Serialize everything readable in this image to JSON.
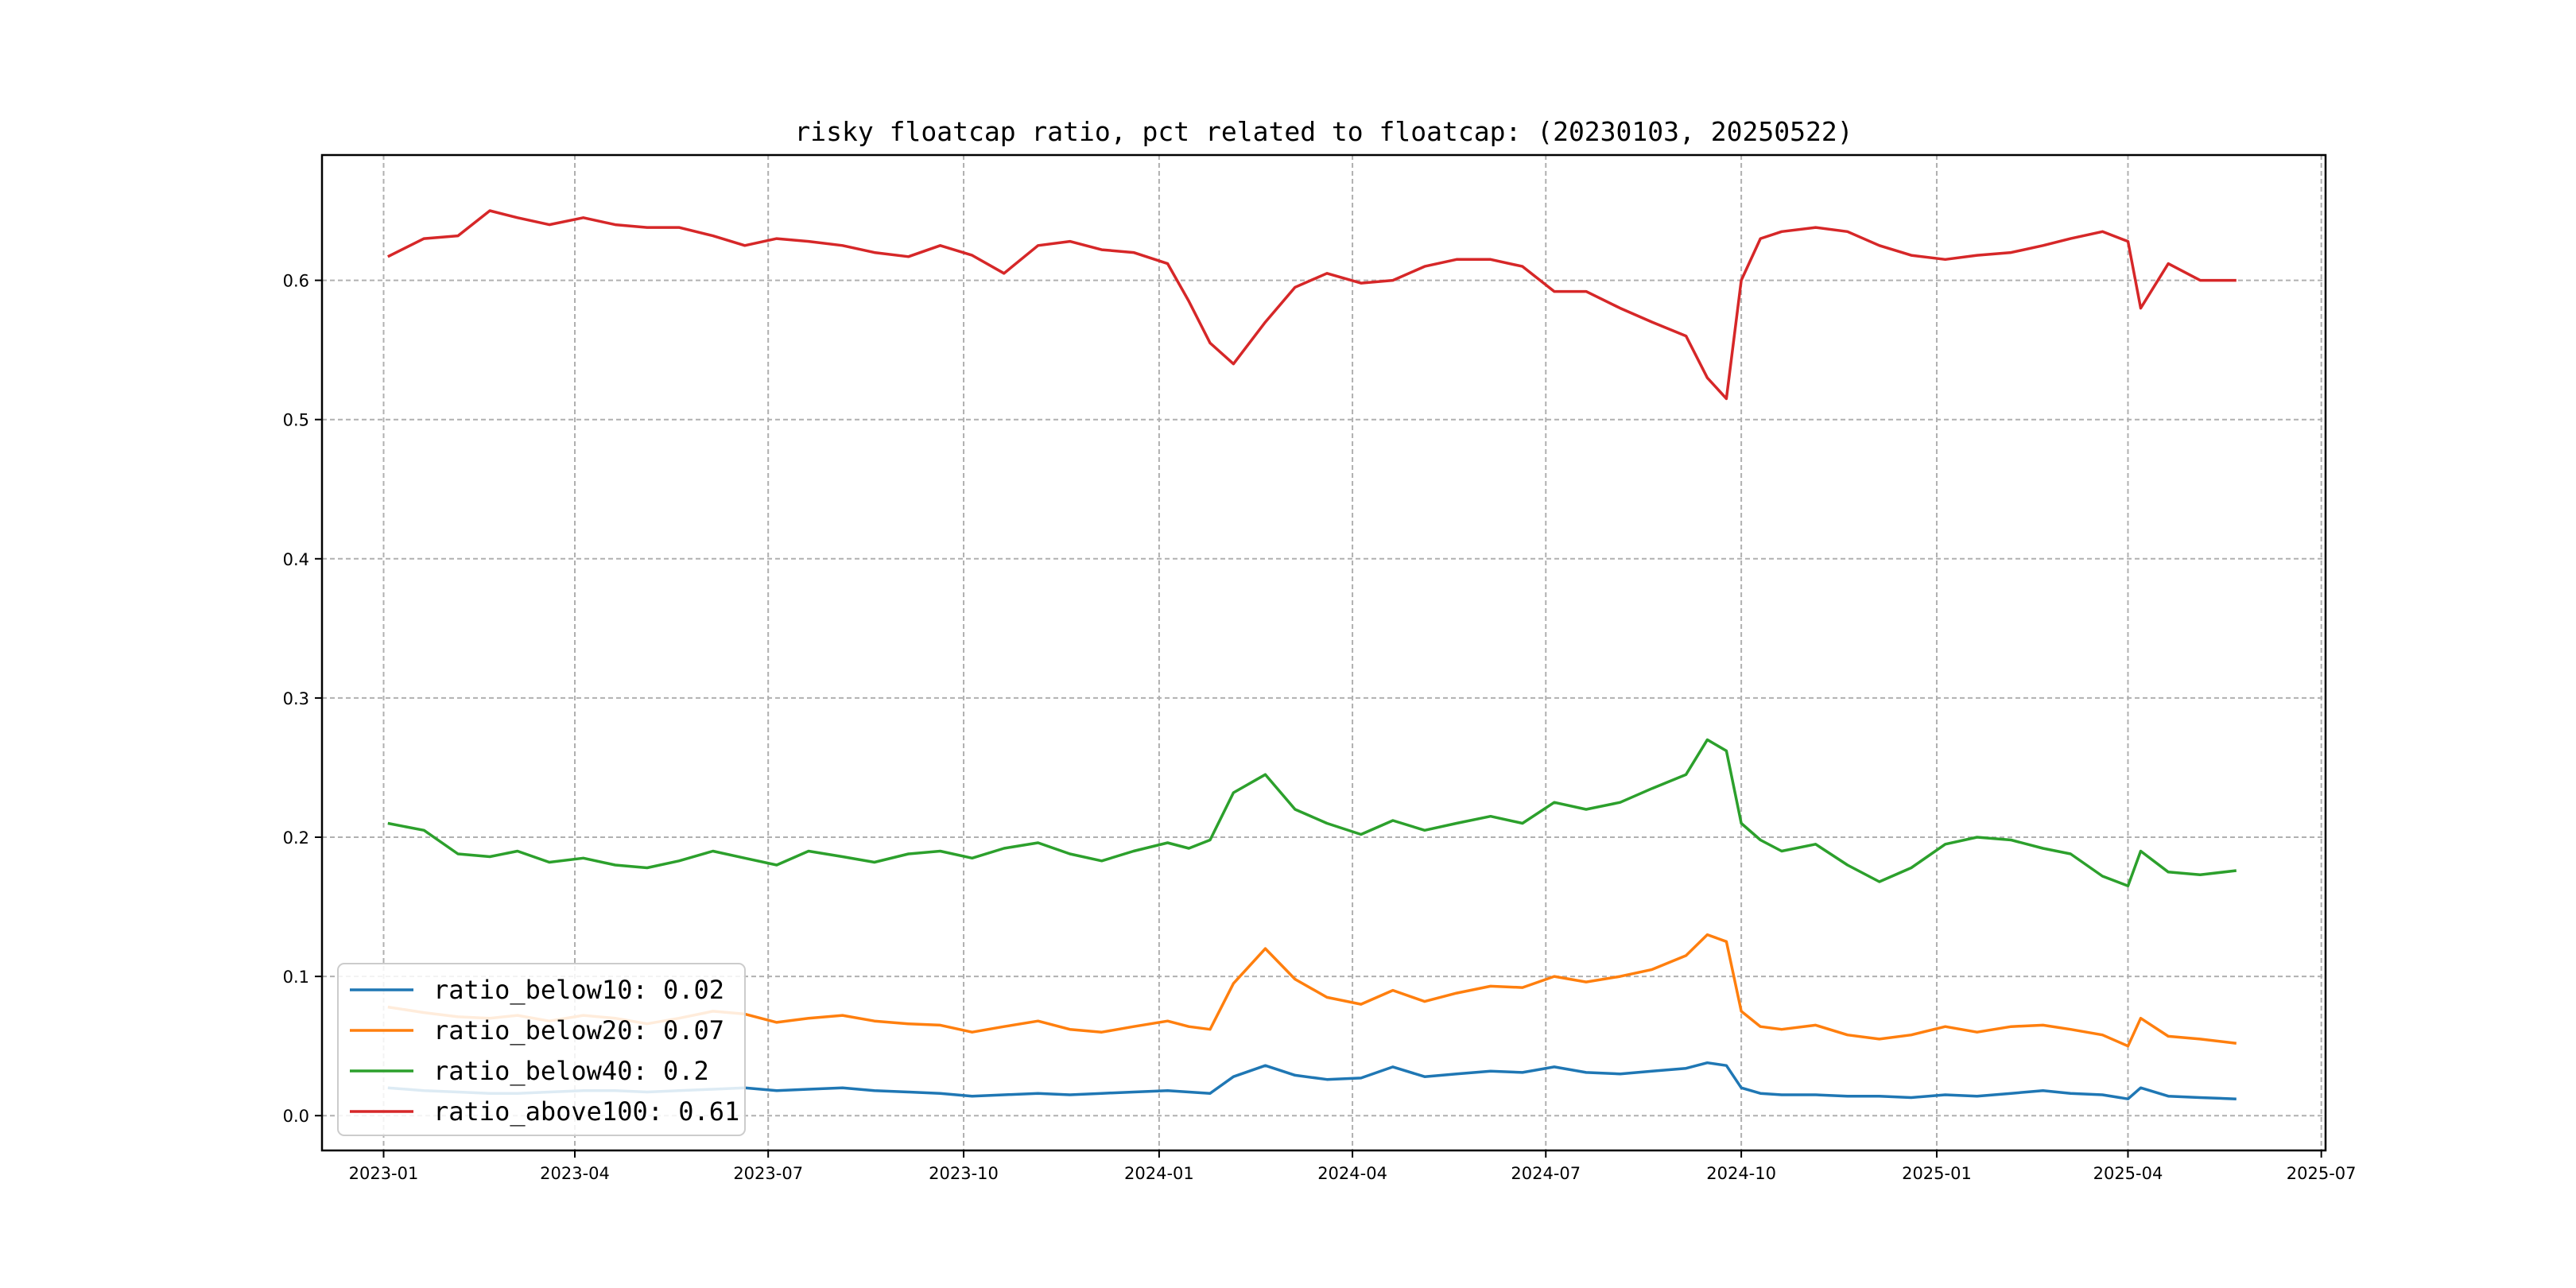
{
  "chart_data": {
    "type": "line",
    "title": "risky floatcap ratio, pct related to floatcap: (20230103, 20250522)",
    "xlabel": "",
    "ylabel": "",
    "xlim": [
      "2022-12-03",
      "2025-07-03"
    ],
    "ylim": [
      -0.025,
      0.69
    ],
    "grid": true,
    "legend_position": "lower-left",
    "x_ticks": [
      "2023-01",
      "2023-04",
      "2023-07",
      "2023-10",
      "2024-01",
      "2024-04",
      "2024-07",
      "2024-10",
      "2025-01",
      "2025-04",
      "2025-07"
    ],
    "y_ticks": [
      "0.0",
      "0.1",
      "0.2",
      "0.3",
      "0.4",
      "0.5",
      "0.6"
    ],
    "x": [
      "2023-01-03",
      "2023-01-20",
      "2023-02-05",
      "2023-02-20",
      "2023-03-05",
      "2023-03-20",
      "2023-04-05",
      "2023-04-20",
      "2023-05-05",
      "2023-05-20",
      "2023-06-05",
      "2023-06-20",
      "2023-07-05",
      "2023-07-20",
      "2023-08-05",
      "2023-08-20",
      "2023-09-05",
      "2023-09-20",
      "2023-10-05",
      "2023-10-20",
      "2023-11-05",
      "2023-11-20",
      "2023-12-05",
      "2023-12-20",
      "2024-01-05",
      "2024-01-15",
      "2024-01-25",
      "2024-02-05",
      "2024-02-20",
      "2024-03-05",
      "2024-03-20",
      "2024-04-05",
      "2024-04-20",
      "2024-05-05",
      "2024-05-20",
      "2024-06-05",
      "2024-06-20",
      "2024-07-05",
      "2024-07-20",
      "2024-08-05",
      "2024-08-20",
      "2024-09-05",
      "2024-09-15",
      "2024-09-24",
      "2024-10-01",
      "2024-10-10",
      "2024-10-20",
      "2024-11-05",
      "2024-11-20",
      "2024-12-05",
      "2024-12-20",
      "2025-01-05",
      "2025-01-20",
      "2025-02-05",
      "2025-02-20",
      "2025-03-05",
      "2025-03-20",
      "2025-04-01",
      "2025-04-07",
      "2025-04-20",
      "2025-05-05",
      "2025-05-22"
    ],
    "series": [
      {
        "name": "ratio_below10: 0.02",
        "color": "#1f77b4",
        "values": [
          0.02,
          0.018,
          0.017,
          0.016,
          0.016,
          0.017,
          0.018,
          0.018,
          0.017,
          0.018,
          0.019,
          0.02,
          0.018,
          0.019,
          0.02,
          0.018,
          0.017,
          0.016,
          0.014,
          0.015,
          0.016,
          0.015,
          0.016,
          0.017,
          0.018,
          0.017,
          0.016,
          0.028,
          0.036,
          0.029,
          0.026,
          0.027,
          0.035,
          0.028,
          0.03,
          0.032,
          0.031,
          0.035,
          0.031,
          0.03,
          0.032,
          0.034,
          0.038,
          0.036,
          0.02,
          0.016,
          0.015,
          0.015,
          0.014,
          0.014,
          0.013,
          0.015,
          0.014,
          0.016,
          0.018,
          0.016,
          0.015,
          0.012,
          0.02,
          0.014,
          0.013,
          0.012
        ]
      },
      {
        "name": "ratio_below20: 0.07",
        "color": "#ff7f0e",
        "values": [
          0.078,
          0.074,
          0.071,
          0.07,
          0.072,
          0.068,
          0.072,
          0.07,
          0.066,
          0.07,
          0.075,
          0.073,
          0.067,
          0.07,
          0.072,
          0.068,
          0.066,
          0.065,
          0.06,
          0.064,
          0.068,
          0.062,
          0.06,
          0.064,
          0.068,
          0.064,
          0.062,
          0.095,
          0.12,
          0.098,
          0.085,
          0.08,
          0.09,
          0.082,
          0.088,
          0.093,
          0.092,
          0.1,
          0.096,
          0.1,
          0.105,
          0.115,
          0.13,
          0.125,
          0.075,
          0.064,
          0.062,
          0.065,
          0.058,
          0.055,
          0.058,
          0.064,
          0.06,
          0.064,
          0.065,
          0.062,
          0.058,
          0.05,
          0.07,
          0.057,
          0.055,
          0.052
        ]
      },
      {
        "name": "ratio_below40: 0.2",
        "color": "#2ca02c",
        "values": [
          0.21,
          0.205,
          0.188,
          0.186,
          0.19,
          0.182,
          0.185,
          0.18,
          0.178,
          0.183,
          0.19,
          0.185,
          0.18,
          0.19,
          0.186,
          0.182,
          0.188,
          0.19,
          0.185,
          0.192,
          0.196,
          0.188,
          0.183,
          0.19,
          0.196,
          0.192,
          0.198,
          0.232,
          0.245,
          0.22,
          0.21,
          0.202,
          0.212,
          0.205,
          0.21,
          0.215,
          0.21,
          0.225,
          0.22,
          0.225,
          0.235,
          0.245,
          0.27,
          0.262,
          0.21,
          0.198,
          0.19,
          0.195,
          0.18,
          0.168,
          0.178,
          0.195,
          0.2,
          0.198,
          0.192,
          0.188,
          0.172,
          0.165,
          0.19,
          0.175,
          0.173,
          0.176
        ]
      },
      {
        "name": "ratio_above100: 0.61",
        "color": "#d62728",
        "values": [
          0.617,
          0.63,
          0.632,
          0.65,
          0.645,
          0.64,
          0.645,
          0.64,
          0.638,
          0.638,
          0.632,
          0.625,
          0.63,
          0.628,
          0.625,
          0.62,
          0.617,
          0.625,
          0.618,
          0.605,
          0.625,
          0.628,
          0.622,
          0.62,
          0.612,
          0.585,
          0.555,
          0.54,
          0.57,
          0.595,
          0.605,
          0.598,
          0.6,
          0.61,
          0.615,
          0.615,
          0.61,
          0.592,
          0.592,
          0.58,
          0.57,
          0.56,
          0.53,
          0.515,
          0.6,
          0.63,
          0.635,
          0.638,
          0.635,
          0.625,
          0.618,
          0.615,
          0.618,
          0.62,
          0.625,
          0.63,
          0.635,
          0.628,
          0.58,
          0.612,
          0.6,
          0.6
        ]
      }
    ]
  }
}
